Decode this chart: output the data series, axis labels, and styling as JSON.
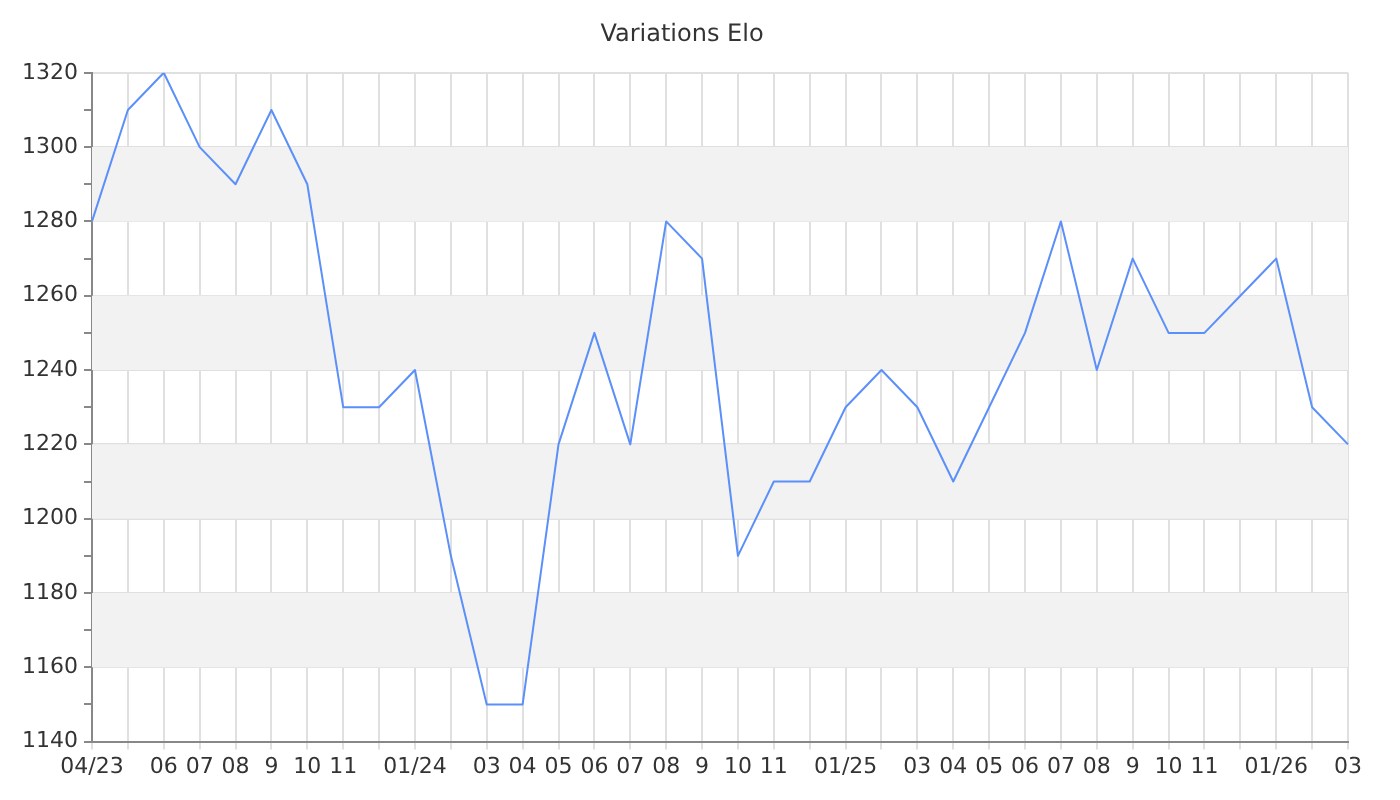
{
  "chart_data": {
    "type": "line",
    "title": "Variations Elo",
    "categories": [
      "04/23",
      null,
      "06",
      "07",
      "08",
      "9",
      "10",
      "11",
      null,
      "01/24",
      null,
      "03",
      "04",
      "05",
      "06",
      "07",
      "08",
      "9",
      "10",
      "11",
      null,
      "01/25",
      null,
      "03",
      "04",
      "05",
      "06",
      "07",
      "08",
      "9",
      "10",
      "11",
      null,
      "01/26",
      null,
      "03"
    ],
    "series": [
      {
        "color": "#5b8ff9",
        "values": [
          1280,
          1310,
          1320,
          1300,
          1290,
          1310,
          1290,
          1230,
          1230,
          1240,
          1190,
          1150,
          1150,
          1220,
          1250,
          1220,
          1280,
          1270,
          1190,
          1210,
          1210,
          1230,
          1240,
          1230,
          1210,
          1230,
          1250,
          1280,
          1240,
          1270,
          1250,
          1250,
          1260,
          1270,
          1230,
          1220
        ]
      }
    ],
    "ylim": [
      1140,
      1320
    ],
    "yticks": [
      1140,
      {
        "value": 1150,
        "label": null
      },
      1160,
      {
        "value": 1170,
        "label": null
      },
      1180,
      {
        "value": 1190,
        "label": null
      },
      1200,
      {
        "value": 1210,
        "label": null
      },
      1220,
      {
        "value": 1230,
        "label": null
      },
      1240,
      {
        "value": 1250,
        "label": null
      },
      1260,
      {
        "value": 1270,
        "label": null
      },
      1280,
      {
        "value": 1290,
        "label": null
      },
      1300,
      {
        "value": 1310,
        "label": null
      },
      1320
    ],
    "bands": [
      {
        "axis": "y",
        "from": 1160,
        "to": 1180,
        "color": "#f2f2f2"
      },
      {
        "axis": "y",
        "from": 1200,
        "to": 1220,
        "color": "#f2f2f2"
      },
      {
        "axis": "y",
        "from": 1240,
        "to": 1260,
        "color": "#f2f2f2"
      },
      {
        "axis": "y",
        "from": 1280,
        "to": 1300,
        "color": "#f2f2f2"
      }
    ],
    "grid": true,
    "marker": "none",
    "line_style": "solid",
    "legend": false
  }
}
